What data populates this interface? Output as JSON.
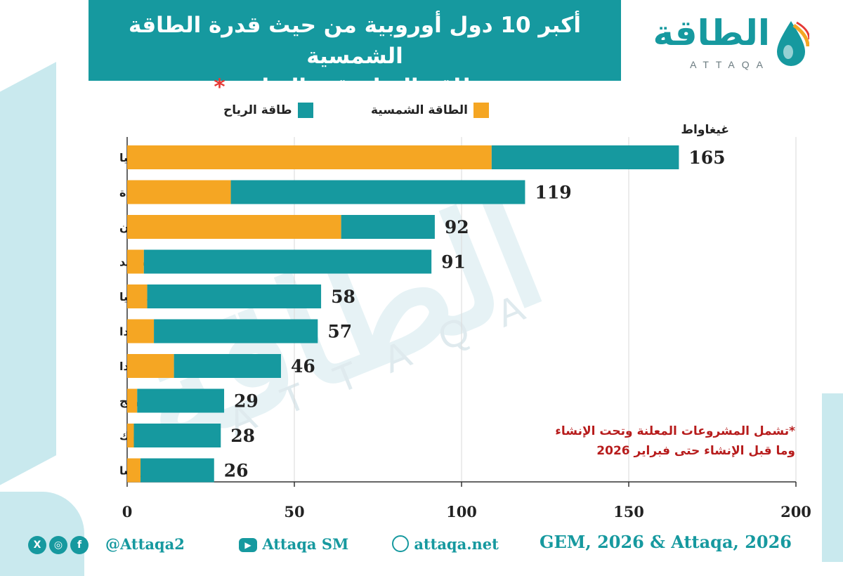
{
  "header": {
    "title_line1": "أكبر 10 دول أوروبية من حيث قدرة الطاقة الشمسية",
    "title_line2": "وطاقة الرياح قيد التطوير",
    "title_star": "*"
  },
  "logo": {
    "arabic": "الطاقة",
    "latin": "ATTAQA"
  },
  "watermark": {
    "arabic": "الطاقة",
    "latin": "ATTAQA"
  },
  "colors": {
    "brand": "#16999f",
    "solar": "#f5a623",
    "wind": "#16999f",
    "note": "#b71c1c"
  },
  "legend": {
    "solar_label": "الطاقة الشمسية",
    "wind_label": "طاقة الرياح"
  },
  "chart_data": {
    "type": "bar",
    "orientation": "horizontal",
    "stacked": true,
    "unit": "غيغاواط",
    "categories": [
      "إسبانيا",
      "المملكة المتحدة",
      "اليونان",
      "السويد",
      "إيطاليا",
      "أيرلندا",
      "فنلندا",
      "النرويج",
      "الدنمارك",
      "فرنسا"
    ],
    "series": [
      {
        "name": "الطاقة الشمسية",
        "color": "#f5a623",
        "values": [
          109,
          31,
          64,
          5,
          6,
          8,
          14,
          3,
          2,
          4
        ]
      },
      {
        "name": "طاقة الرياح",
        "color": "#16999f",
        "values": [
          56,
          88,
          28,
          86,
          52,
          49,
          32,
          26,
          26,
          22
        ]
      }
    ],
    "totals": [
      "165",
      "119",
      "92",
      "91",
      "58",
      "57",
      "46",
      "29",
      "28",
      "26"
    ],
    "xlim": [
      0,
      200
    ],
    "xticks": [
      "0",
      "50",
      "100",
      "150",
      "200"
    ],
    "grid": true
  },
  "note": {
    "line1": "*تشمل المشروعات المعلنة وتحت الإنشاء",
    "line2": "وما قبل الإنشاء حتى فبراير 2026"
  },
  "footer": {
    "social_icons": [
      "x-icon",
      "instagram-icon",
      "facebook-icon"
    ],
    "handle": "@Attaqa2",
    "youtube": "Attaqa SM",
    "website": "attaqa.net",
    "source": "GEM, 2026 & Attaqa, 2026"
  }
}
